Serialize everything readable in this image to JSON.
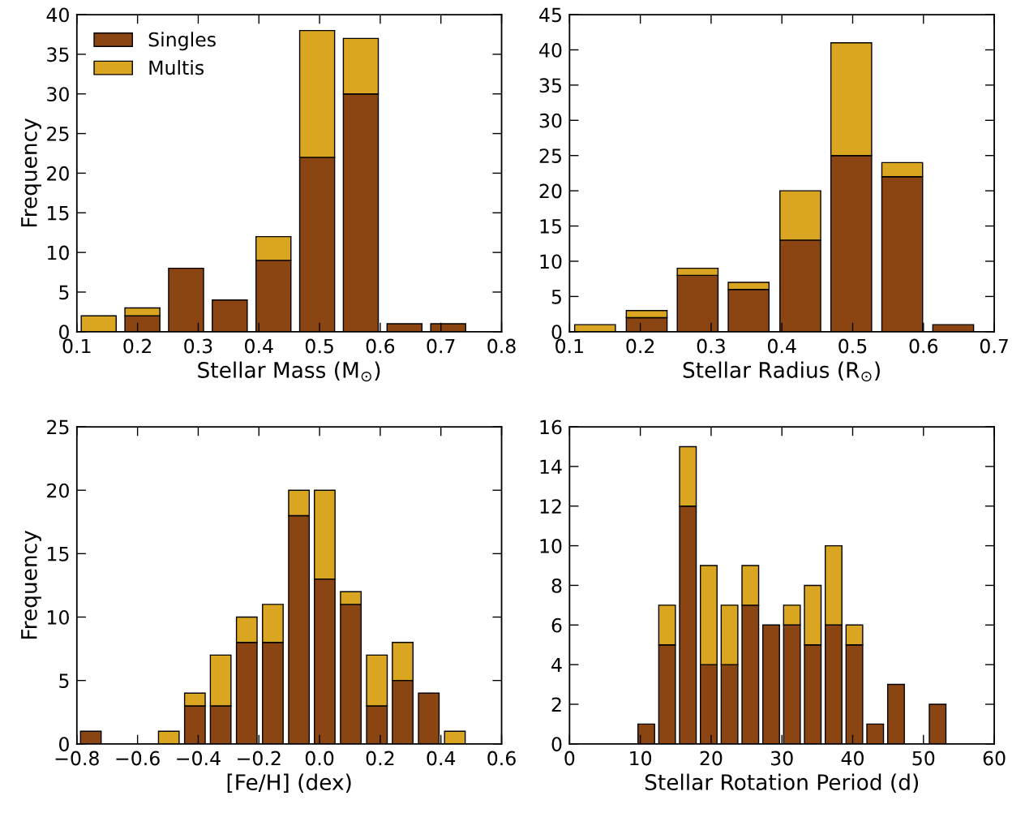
{
  "chart_data": [
    {
      "type": "bar",
      "stacked": true,
      "ylabel": "Frequency",
      "xlabel": "Stellar Mass (M$_{⊙}$)",
      "legend": "top left",
      "grid": false,
      "x": [
        0.136,
        0.208,
        0.28,
        0.352,
        0.424,
        0.496,
        0.568,
        0.64,
        0.712
      ],
      "series": [
        {
          "name": "Singles",
          "color": "#8b4513",
          "values": [
            0,
            2,
            8,
            4,
            9,
            22,
            30,
            1,
            1
          ]
        },
        {
          "name": "Multis",
          "color": "#daa520",
          "values": [
            2,
            1,
            0,
            0,
            3,
            16,
            7,
            0,
            0
          ]
        }
      ],
      "xlim": [
        0.1,
        0.8
      ],
      "xticks": [
        0.1,
        0.2,
        0.3,
        0.4,
        0.5,
        0.6,
        0.7,
        0.8
      ],
      "ylim": [
        0,
        40
      ],
      "yticks": [
        0,
        5,
        10,
        15,
        20,
        25,
        30,
        35,
        40
      ]
    },
    {
      "type": "bar",
      "stacked": true,
      "xlabel": "Stellar Radius (R$_{⊙}$)",
      "grid": false,
      "x": [
        0.136,
        0.209,
        0.281,
        0.353,
        0.426,
        0.498,
        0.57,
        0.642
      ],
      "series": [
        {
          "color": "#8b4513",
          "values": [
            0,
            2,
            8,
            6,
            13,
            25,
            22,
            1
          ]
        },
        {
          "color": "#daa520",
          "values": [
            1,
            1,
            1,
            1,
            7,
            16,
            2,
            0
          ]
        }
      ],
      "xlim": [
        0.1,
        0.7
      ],
      "xticks": [
        0.1,
        0.2,
        0.3,
        0.4,
        0.5,
        0.6,
        0.7
      ],
      "ylim": [
        0,
        45
      ],
      "yticks": [
        0,
        5,
        10,
        15,
        20,
        25,
        30,
        35,
        40,
        45
      ]
    },
    {
      "type": "bar",
      "stacked": true,
      "ylabel": "Frequency",
      "xlabel": "[Fe/H] (dex)",
      "grid": false,
      "x": [
        -0.754,
        -0.668,
        -0.583,
        -0.497,
        -0.411,
        -0.326,
        -0.24,
        -0.154,
        -0.068,
        0.017,
        0.103,
        0.189,
        0.274,
        0.36,
        0.446
      ],
      "series": [
        {
          "color": "#8b4513",
          "values": [
            1,
            0,
            0,
            0,
            3,
            3,
            8,
            8,
            18,
            13,
            11,
            3,
            5,
            4,
            0
          ]
        },
        {
          "color": "#daa520",
          "values": [
            0,
            0,
            0,
            1,
            1,
            4,
            2,
            3,
            2,
            7,
            1,
            4,
            3,
            0,
            1
          ]
        }
      ],
      "xlim": [
        -0.8,
        0.6
      ],
      "xticks": [
        {
          "value": -0.8,
          "label": "−0.8"
        },
        {
          "value": -0.6,
          "label": "−0.6"
        },
        {
          "value": -0.4,
          "label": "−0.4"
        },
        {
          "value": -0.2,
          "label": "−0.2"
        },
        {
          "value": 0,
          "label": "0.0"
        },
        0.2,
        0.4,
        0.6
      ],
      "ylim": [
        0,
        25
      ],
      "yticks": [
        0,
        5,
        10,
        15,
        20,
        25
      ]
    },
    {
      "type": "bar",
      "stacked": true,
      "xlabel": "Stellar Rotation Period (d)",
      "grid": false,
      "x": [
        10.84,
        13.78,
        16.72,
        19.66,
        22.6,
        25.54,
        28.48,
        31.42,
        34.36,
        37.3,
        40.24,
        43.18,
        46.12,
        49.06,
        52.0
      ],
      "series": [
        {
          "color": "#8b4513",
          "values": [
            1,
            5,
            12,
            4,
            4,
            7,
            6,
            6,
            5,
            6,
            5,
            1,
            3,
            0,
            2
          ]
        },
        {
          "color": "#daa520",
          "values": [
            0,
            2,
            3,
            5,
            3,
            2,
            0,
            1,
            3,
            4,
            1,
            0,
            0,
            0,
            0
          ]
        }
      ],
      "xlim": [
        0,
        60
      ],
      "xticks": [
        0,
        10,
        20,
        30,
        40,
        50,
        60
      ],
      "ylim": [
        0,
        16
      ],
      "yticks": [
        0,
        2,
        4,
        6,
        8,
        10,
        12,
        14,
        16
      ]
    }
  ]
}
